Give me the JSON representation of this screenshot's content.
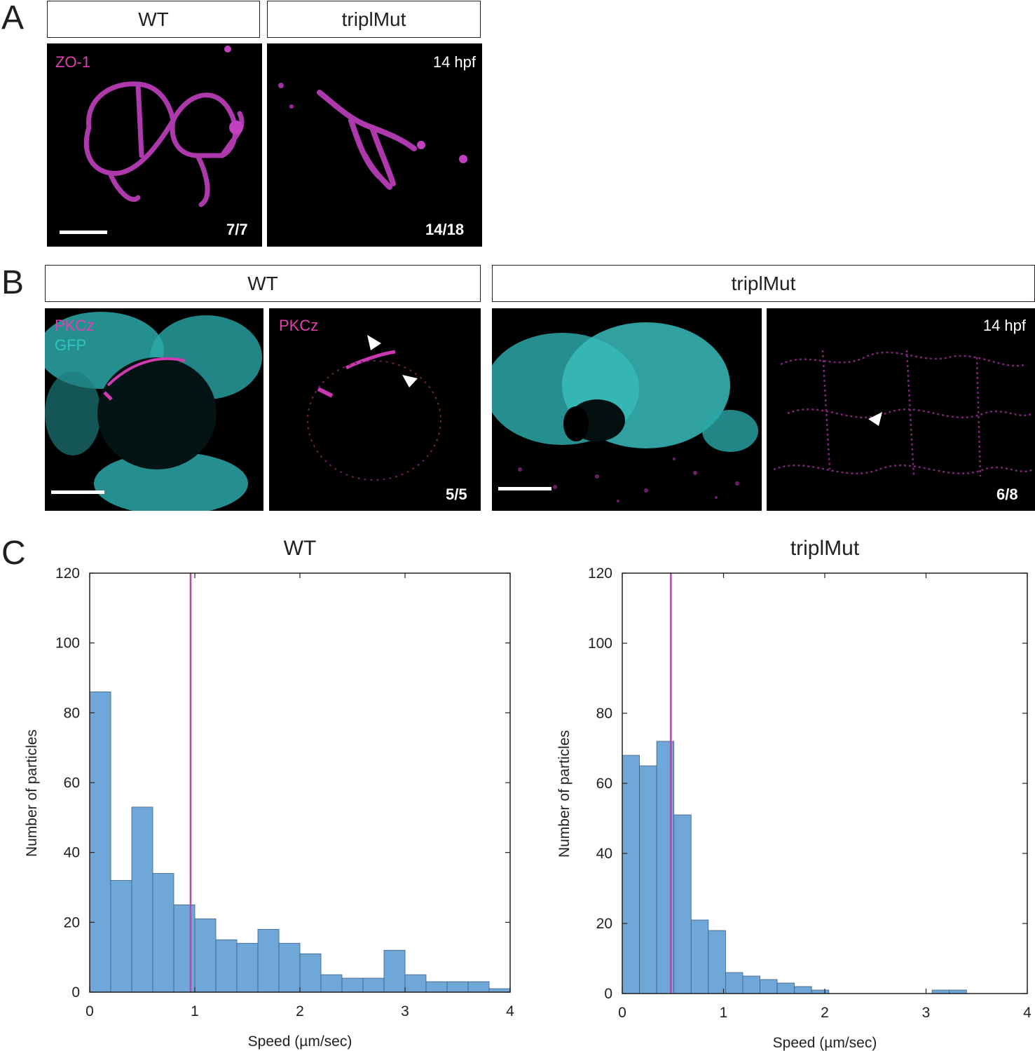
{
  "panels": {
    "a": {
      "letter": "A",
      "headers": [
        "WT",
        "triplMut"
      ],
      "stain": "ZO-1",
      "stage": "14 hpf",
      "counts": [
        "7/7",
        "14/18"
      ]
    },
    "b": {
      "letter": "B",
      "headers": [
        "WT",
        "triplMut"
      ],
      "stain1": "PKCz",
      "stain2": "GFP",
      "stain_single": "PKCz",
      "stage": "14 hpf",
      "counts": [
        "5/5",
        "6/8"
      ]
    },
    "c": {
      "letter": "C"
    }
  },
  "colors": {
    "bar_fill": "#6fa8d8",
    "bar_stroke": "#3a5f82",
    "mean_line": "#b24aa6",
    "magenta": "#e040b0",
    "cyan": "#2ec4c4"
  },
  "chart_data": [
    {
      "type": "bar",
      "title": "WT",
      "xlabel": "Speed (µm/sec)",
      "ylabel": "Number of particles",
      "xlim": [
        0,
        4
      ],
      "ylim": [
        0,
        120
      ],
      "xticks": [
        "0",
        "1",
        "2",
        "3",
        "4"
      ],
      "yticks": [
        "0",
        "20",
        "40",
        "60",
        "80",
        "100",
        "120"
      ],
      "bin_width": 0.2,
      "bin_starts": [
        0,
        0.2,
        0.4,
        0.6,
        0.8,
        1.0,
        1.2,
        1.4,
        1.6,
        1.8,
        2.0,
        2.2,
        2.4,
        2.6,
        2.8,
        3.0,
        3.2,
        3.4,
        3.6,
        3.8
      ],
      "values": [
        86,
        32,
        53,
        34,
        25,
        21,
        15,
        14,
        18,
        14,
        11,
        5,
        4,
        4,
        12,
        5,
        3,
        3,
        3,
        1
      ],
      "mean_line": 0.96
    },
    {
      "type": "bar",
      "title": "triplMut",
      "xlabel": "Speed (µm/sec)",
      "ylabel": "Number of particles",
      "xlim": [
        0,
        4
      ],
      "ylim": [
        0,
        120
      ],
      "xticks": [
        "0",
        "1",
        "2",
        "3",
        "4"
      ],
      "yticks": [
        "0",
        "20",
        "40",
        "60",
        "80",
        "100",
        "120"
      ],
      "bin_width": 0.17,
      "bin_starts": [
        0,
        0.17,
        0.34,
        0.51,
        0.68,
        0.85,
        1.02,
        1.19,
        1.36,
        1.53,
        1.7,
        1.87,
        3.06,
        3.23
      ],
      "values": [
        68,
        65,
        72,
        51,
        21,
        18,
        6,
        5,
        4,
        3,
        2,
        1,
        1,
        1
      ],
      "mean_line": 0.48
    }
  ]
}
